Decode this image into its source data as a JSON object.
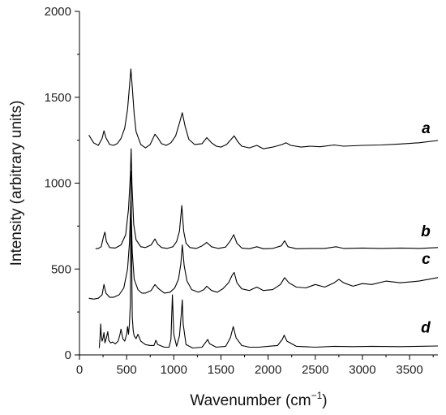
{
  "chart_data": {
    "type": "line",
    "title": "",
    "xlabel": "Wavenumber (cm",
    "xlabel_sup": "−1",
    "xlabel_end": ")",
    "ylabel": "Intensity (arbitrary units)",
    "xlim": [
      0,
      3800
    ],
    "ylim": [
      0,
      2000
    ],
    "xticks": [
      0,
      500,
      1000,
      1500,
      2000,
      2500,
      3000,
      3500
    ],
    "yticks": [
      0,
      500,
      1000,
      1500,
      2000
    ],
    "grid": false,
    "line_color": "#000000",
    "series": [
      {
        "name": "a",
        "x": [
          100,
          150,
          200,
          240,
          260,
          280,
          320,
          360,
          400,
          440,
          480,
          510,
          530,
          545,
          560,
          580,
          600,
          650,
          700,
          750,
          800,
          830,
          870,
          920,
          970,
          1020,
          1060,
          1090,
          1120,
          1160,
          1220,
          1300,
          1350,
          1400,
          1450,
          1500,
          1560,
          1600,
          1640,
          1680,
          1720,
          1800,
          1880,
          1950,
          2050,
          2150,
          2190,
          2240,
          2350,
          2450,
          2550,
          2700,
          2800,
          3000,
          3200,
          3400,
          3600,
          3800
        ],
        "y": [
          1280,
          1235,
          1220,
          1260,
          1305,
          1265,
          1225,
          1220,
          1230,
          1260,
          1320,
          1430,
          1560,
          1665,
          1560,
          1400,
          1300,
          1225,
          1205,
          1225,
          1285,
          1265,
          1230,
          1220,
          1235,
          1275,
          1350,
          1410,
          1330,
          1255,
          1225,
          1230,
          1265,
          1235,
          1215,
          1210,
          1225,
          1250,
          1275,
          1240,
          1215,
          1205,
          1220,
          1200,
          1210,
          1225,
          1235,
          1220,
          1210,
          1215,
          1212,
          1222,
          1215,
          1220,
          1222,
          1228,
          1235,
          1248
        ]
      },
      {
        "name": "b",
        "x": [
          170,
          200,
          230,
          255,
          270,
          285,
          320,
          380,
          440,
          490,
          520,
          540,
          548,
          556,
          575,
          600,
          650,
          700,
          760,
          800,
          830,
          870,
          930,
          990,
          1030,
          1060,
          1085,
          1105,
          1130,
          1170,
          1240,
          1300,
          1350,
          1400,
          1470,
          1550,
          1600,
          1635,
          1670,
          1720,
          1800,
          1880,
          1950,
          2050,
          2140,
          2175,
          2210,
          2300,
          2450,
          2600,
          2720,
          2800,
          3000,
          3200,
          3400,
          3600,
          3800
        ],
        "y": [
          618,
          620,
          630,
          690,
          715,
          660,
          625,
          622,
          640,
          700,
          850,
          1050,
          1200,
          1000,
          760,
          670,
          630,
          625,
          640,
          675,
          645,
          625,
          620,
          630,
          660,
          720,
          870,
          720,
          650,
          625,
          620,
          635,
          655,
          630,
          620,
          628,
          665,
          700,
          650,
          622,
          618,
          630,
          618,
          620,
          635,
          665,
          630,
          618,
          620,
          620,
          630,
          620,
          622,
          620,
          622,
          620,
          625
        ]
      },
      {
        "name": "c",
        "x": [
          100,
          150,
          200,
          240,
          260,
          280,
          320,
          360,
          420,
          470,
          510,
          530,
          545,
          560,
          580,
          620,
          660,
          700,
          760,
          800,
          840,
          900,
          960,
          1010,
          1050,
          1075,
          1090,
          1110,
          1140,
          1190,
          1260,
          1320,
          1350,
          1400,
          1460,
          1520,
          1580,
          1620,
          1640,
          1670,
          1720,
          1800,
          1880,
          1950,
          2050,
          2130,
          2175,
          2220,
          2300,
          2400,
          2500,
          2600,
          2700,
          2750,
          2800,
          2900,
          3000,
          3100,
          3250,
          3400,
          3600,
          3800
        ],
        "y": [
          330,
          325,
          330,
          350,
          410,
          360,
          335,
          335,
          350,
          390,
          500,
          650,
          900,
          600,
          440,
          380,
          360,
          360,
          375,
          410,
          385,
          360,
          365,
          390,
          440,
          530,
          640,
          520,
          430,
          380,
          365,
          380,
          400,
          375,
          365,
          385,
          420,
          465,
          480,
          420,
          385,
          375,
          395,
          375,
          380,
          410,
          450,
          420,
          395,
          390,
          410,
          395,
          420,
          440,
          420,
          400,
          415,
          410,
          430,
          420,
          430,
          450
        ]
      },
      {
        "name": "d",
        "x": [
          210,
          220,
          225,
          230,
          240,
          250,
          260,
          270,
          280,
          290,
          300,
          310,
          330,
          350,
          380,
          410,
          430,
          440,
          460,
          480,
          500,
          510,
          520,
          530,
          540,
          547,
          553,
          560,
          570,
          580,
          600,
          620,
          650,
          700,
          750,
          790,
          810,
          830,
          900,
          950,
          970,
          985,
          1000,
          1030,
          1060,
          1080,
          1090,
          1100,
          1130,
          1200,
          1300,
          1340,
          1360,
          1380,
          1450,
          1550,
          1600,
          1630,
          1660,
          1720,
          1800,
          1900,
          2000,
          2100,
          2150,
          2170,
          2200,
          2300,
          2500,
          2700,
          2900,
          3100,
          3400,
          3600,
          3800
        ],
        "y": [
          40,
          120,
          180,
          120,
          80,
          100,
          130,
          70,
          90,
          110,
          135,
          85,
          70,
          75,
          65,
          80,
          120,
          150,
          95,
          80,
          120,
          165,
          120,
          180,
          300,
          1070,
          600,
          220,
          140,
          110,
          95,
          120,
          80,
          60,
          55,
          55,
          85,
          60,
          45,
          45,
          90,
          350,
          120,
          50,
          110,
          240,
          320,
          180,
          60,
          40,
          45,
          75,
          90,
          65,
          45,
          50,
          100,
          165,
          100,
          55,
          45,
          45,
          50,
          55,
          90,
          115,
          80,
          50,
          45,
          50,
          48,
          50,
          48,
          50,
          52
        ]
      }
    ]
  }
}
